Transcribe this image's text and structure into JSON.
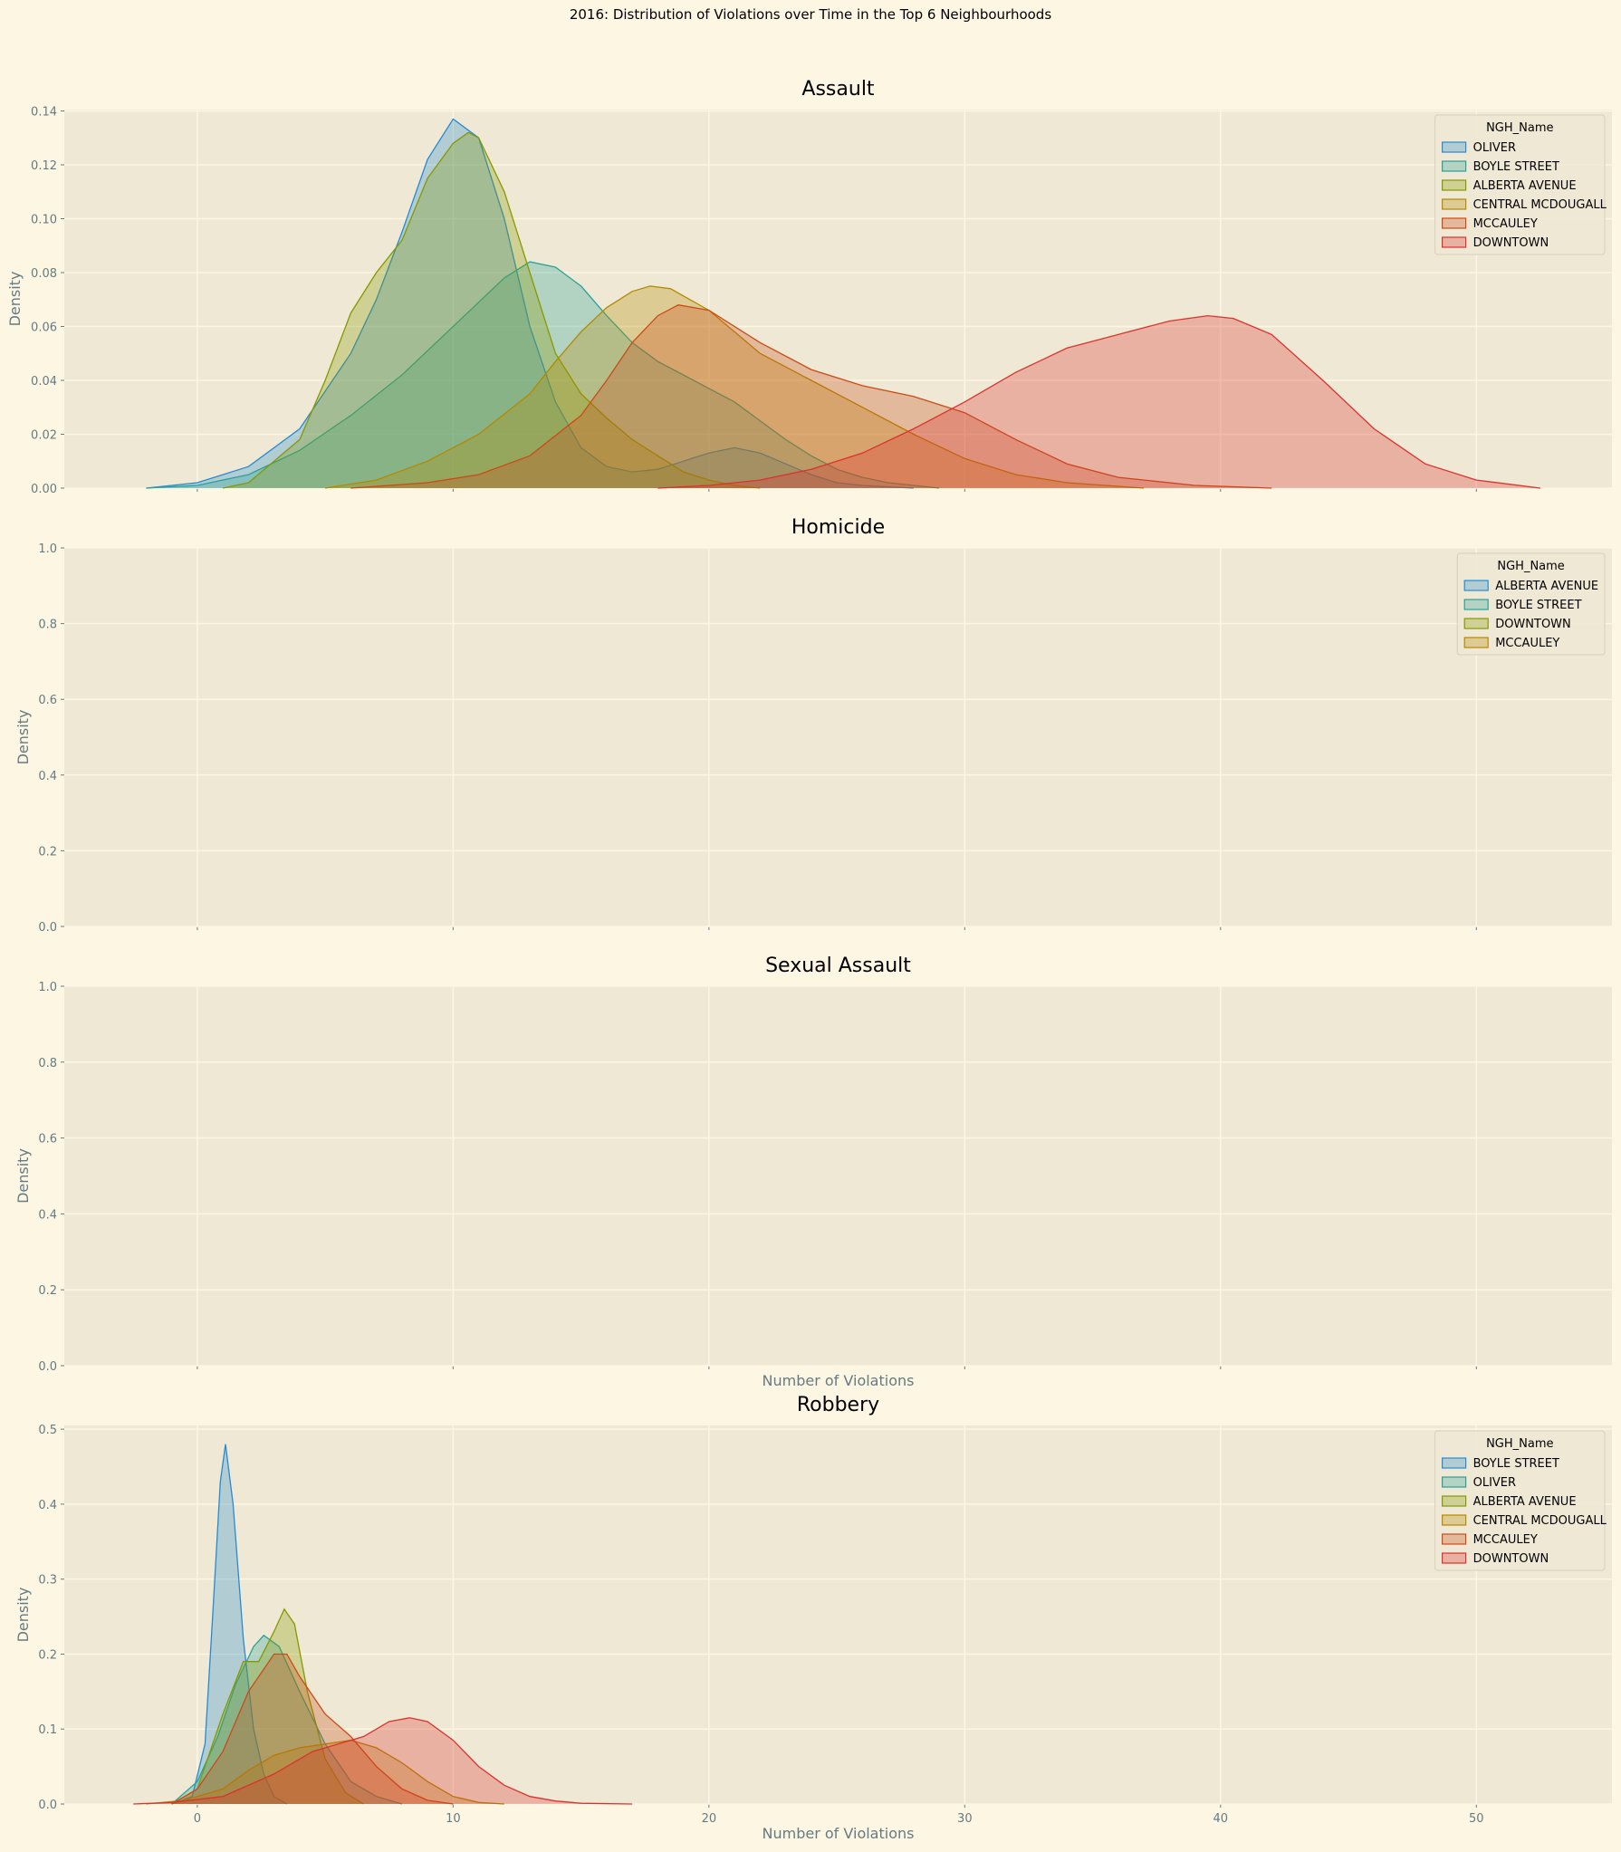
{
  "chart_data": {
    "type": "area",
    "title": "2016: Distribution of Violations over Time in the Top 6 Neighbourhoods",
    "colors": {
      "ALBERTA AVENUE_BOYLE_placeholder": "",
      "palette": [
        "#268bd2",
        "#2aa198",
        "#859900",
        "#b58900",
        "#cb4b16",
        "#dc322f"
      ]
    },
    "style": {
      "figure_bg": "#fdf6e3",
      "axes_bg": "#eee8d5",
      "grid": "#fdf6e3",
      "tick_color": "#657b83"
    },
    "xlim": [
      -5.2,
      55.3
    ],
    "xticks": [
      0,
      10,
      20,
      30,
      40,
      50
    ],
    "legend_title": "NGH_Name",
    "legend_loc": "upper right",
    "panels": [
      {
        "title": "Assault",
        "ylabel": "Density",
        "xlabel": "",
        "ylim": [
          0,
          0.1405
        ],
        "yticks": [
          "0.00",
          "0.02",
          "0.04",
          "0.06",
          "0.08",
          "0.10",
          "0.12",
          "0.14"
        ],
        "series": [
          {
            "name": "OLIVER",
            "color": "#268bd2",
            "points": [
              [
                -2,
                0
              ],
              [
                0,
                0.002
              ],
              [
                2,
                0.008
              ],
              [
                4,
                0.022
              ],
              [
                6,
                0.05
              ],
              [
                7,
                0.07
              ],
              [
                8,
                0.095
              ],
              [
                9,
                0.122
              ],
              [
                10,
                0.137
              ],
              [
                11,
                0.13
              ],
              [
                12,
                0.1
              ],
              [
                13,
                0.06
              ],
              [
                14,
                0.032
              ],
              [
                15,
                0.015
              ],
              [
                16,
                0.008
              ],
              [
                17,
                0.006
              ],
              [
                18,
                0.007
              ],
              [
                19,
                0.01
              ],
              [
                20,
                0.013
              ],
              [
                21,
                0.015
              ],
              [
                22,
                0.013
              ],
              [
                23,
                0.009
              ],
              [
                24,
                0.005
              ],
              [
                25,
                0.002
              ],
              [
                26,
                0.001
              ],
              [
                28,
                0
              ]
            ]
          },
          {
            "name": "BOYLE STREET",
            "color": "#2aa198",
            "points": [
              [
                -2,
                0
              ],
              [
                0,
                0.001
              ],
              [
                2,
                0.005
              ],
              [
                4,
                0.014
              ],
              [
                6,
                0.027
              ],
              [
                8,
                0.042
              ],
              [
                10,
                0.06
              ],
              [
                12,
                0.078
              ],
              [
                13,
                0.084
              ],
              [
                14,
                0.082
              ],
              [
                15,
                0.075
              ],
              [
                16,
                0.064
              ],
              [
                17,
                0.054
              ],
              [
                18,
                0.047
              ],
              [
                19,
                0.042
              ],
              [
                20,
                0.037
              ],
              [
                21,
                0.032
              ],
              [
                22,
                0.025
              ],
              [
                23,
                0.018
              ],
              [
                24,
                0.012
              ],
              [
                25,
                0.007
              ],
              [
                26,
                0.004
              ],
              [
                27,
                0.002
              ],
              [
                29,
                0
              ]
            ]
          },
          {
            "name": "ALBERTA AVENUE",
            "color": "#859900",
            "points": [
              [
                1,
                0
              ],
              [
                2,
                0.002
              ],
              [
                4,
                0.018
              ],
              [
                5,
                0.04
              ],
              [
                6,
                0.065
              ],
              [
                7,
                0.08
              ],
              [
                8,
                0.092
              ],
              [
                9,
                0.115
              ],
              [
                10,
                0.128
              ],
              [
                10.6,
                0.132
              ],
              [
                11,
                0.13
              ],
              [
                12,
                0.11
              ],
              [
                13,
                0.08
              ],
              [
                14,
                0.05
              ],
              [
                15,
                0.035
              ],
              [
                16,
                0.026
              ],
              [
                17,
                0.018
              ],
              [
                18,
                0.012
              ],
              [
                19,
                0.006
              ],
              [
                20,
                0.003
              ],
              [
                21,
                0.001
              ],
              [
                22,
                0
              ]
            ]
          },
          {
            "name": "CENTRAL MCDOUGALL",
            "color": "#b58900",
            "points": [
              [
                5,
                0
              ],
              [
                7,
                0.003
              ],
              [
                9,
                0.01
              ],
              [
                11,
                0.02
              ],
              [
                13,
                0.035
              ],
              [
                14,
                0.047
              ],
              [
                15,
                0.058
              ],
              [
                16,
                0.067
              ],
              [
                17,
                0.073
              ],
              [
                17.7,
                0.075
              ],
              [
                18.5,
                0.074
              ],
              [
                20,
                0.066
              ],
              [
                21,
                0.058
              ],
              [
                22,
                0.05
              ],
              [
                24,
                0.04
              ],
              [
                26,
                0.03
              ],
              [
                28,
                0.02
              ],
              [
                30,
                0.011
              ],
              [
                32,
                0.005
              ],
              [
                34,
                0.002
              ],
              [
                37,
                0
              ]
            ]
          },
          {
            "name": "MCCAULEY",
            "color": "#cb4b16",
            "points": [
              [
                6,
                0
              ],
              [
                9,
                0.002
              ],
              [
                11,
                0.005
              ],
              [
                13,
                0.012
              ],
              [
                15,
                0.027
              ],
              [
                16,
                0.04
              ],
              [
                17,
                0.054
              ],
              [
                18,
                0.064
              ],
              [
                18.8,
                0.068
              ],
              [
                20,
                0.066
              ],
              [
                22,
                0.054
              ],
              [
                24,
                0.044
              ],
              [
                26,
                0.038
              ],
              [
                28,
                0.034
              ],
              [
                30,
                0.028
              ],
              [
                32,
                0.018
              ],
              [
                34,
                0.009
              ],
              [
                36,
                0.004
              ],
              [
                39,
                0.001
              ],
              [
                42,
                0
              ]
            ]
          },
          {
            "name": "DOWNTOWN",
            "color": "#dc322f",
            "points": [
              [
                18,
                0
              ],
              [
                20,
                0.001
              ],
              [
                22,
                0.003
              ],
              [
                24,
                0.007
              ],
              [
                26,
                0.013
              ],
              [
                28,
                0.022
              ],
              [
                30,
                0.032
              ],
              [
                32,
                0.043
              ],
              [
                34,
                0.052
              ],
              [
                36,
                0.057
              ],
              [
                38,
                0.062
              ],
              [
                39.5,
                0.064
              ],
              [
                40.5,
                0.063
              ],
              [
                42,
                0.057
              ],
              [
                44,
                0.04
              ],
              [
                46,
                0.022
              ],
              [
                48,
                0.009
              ],
              [
                50,
                0.003
              ],
              [
                52.5,
                0
              ]
            ]
          }
        ]
      },
      {
        "title": "Homicide",
        "ylabel": "Density",
        "xlabel": "",
        "ylim": [
          0,
          1.0
        ],
        "yticks": [
          "0.0",
          "0.2",
          "0.4",
          "0.6",
          "0.8",
          "1.0"
        ],
        "legend": [
          "ALBERTA AVENUE",
          "BOYLE STREET",
          "DOWNTOWN",
          "MCCAULEY"
        ],
        "series": []
      },
      {
        "title": "Sexual Assault",
        "ylabel": "Density",
        "xlabel": "Number of Violations",
        "ylim": [
          0,
          1.0
        ],
        "yticks": [
          "0.0",
          "0.2",
          "0.4",
          "0.6",
          "0.8",
          "1.0"
        ],
        "series": []
      },
      {
        "title": "Robbery",
        "ylabel": "Density",
        "xlabel": "Number of Violations",
        "ylim": [
          0,
          0.505
        ],
        "yticks": [
          "0.0",
          "0.1",
          "0.2",
          "0.3",
          "0.4",
          "0.5"
        ],
        "series": [
          {
            "name": "BOYLE STREET",
            "color": "#268bd2",
            "points": [
              [
                -1,
                0
              ],
              [
                -0.2,
                0.01
              ],
              [
                0.3,
                0.08
              ],
              [
                0.6,
                0.25
              ],
              [
                0.9,
                0.43
              ],
              [
                1.1,
                0.48
              ],
              [
                1.4,
                0.4
              ],
              [
                1.8,
                0.22
              ],
              [
                2.2,
                0.1
              ],
              [
                2.6,
                0.04
              ],
              [
                3,
                0.01
              ],
              [
                3.5,
                0
              ]
            ]
          },
          {
            "name": "OLIVER",
            "color": "#2aa198",
            "points": [
              [
                -1,
                0
              ],
              [
                0,
                0.03
              ],
              [
                0.8,
                0.09
              ],
              [
                1.5,
                0.16
              ],
              [
                2.2,
                0.21
              ],
              [
                2.6,
                0.225
              ],
              [
                3.2,
                0.21
              ],
              [
                4,
                0.15
              ],
              [
                5,
                0.08
              ],
              [
                6,
                0.03
              ],
              [
                7,
                0.01
              ],
              [
                8,
                0
              ]
            ]
          },
          {
            "name": "ALBERTA AVENUE",
            "color": "#859900",
            "points": [
              [
                -1,
                0
              ],
              [
                0,
                0.02
              ],
              [
                1,
                0.12
              ],
              [
                1.8,
                0.19
              ],
              [
                2.4,
                0.19
              ],
              [
                3,
                0.23
              ],
              [
                3.4,
                0.26
              ],
              [
                3.8,
                0.24
              ],
              [
                4.3,
                0.15
              ],
              [
                5,
                0.06
              ],
              [
                5.8,
                0.015
              ],
              [
                6.5,
                0
              ]
            ]
          },
          {
            "name": "CENTRAL MCDOUGALL",
            "color": "#b58900",
            "points": [
              [
                -2,
                0
              ],
              [
                -0.5,
                0.005
              ],
              [
                1,
                0.02
              ],
              [
                2,
                0.045
              ],
              [
                3,
                0.065
              ],
              [
                4,
                0.075
              ],
              [
                5,
                0.08
              ],
              [
                6,
                0.085
              ],
              [
                7,
                0.075
              ],
              [
                8,
                0.055
              ],
              [
                9,
                0.03
              ],
              [
                10,
                0.01
              ],
              [
                11,
                0.002
              ],
              [
                12,
                0
              ]
            ]
          },
          {
            "name": "MCCAULEY",
            "color": "#cb4b16",
            "points": [
              [
                -1,
                0
              ],
              [
                0,
                0.02
              ],
              [
                1,
                0.07
              ],
              [
                2,
                0.15
              ],
              [
                3,
                0.2
              ],
              [
                3.5,
                0.2
              ],
              [
                4,
                0.17
              ],
              [
                5,
                0.12
              ],
              [
                6,
                0.09
              ],
              [
                7,
                0.05
              ],
              [
                8,
                0.02
              ],
              [
                9,
                0.005
              ],
              [
                10,
                0
              ]
            ]
          },
          {
            "name": "DOWNTOWN",
            "color": "#dc322f",
            "points": [
              [
                -2.5,
                0
              ],
              [
                -1,
                0.002
              ],
              [
                1,
                0.01
              ],
              [
                3,
                0.04
              ],
              [
                4.5,
                0.07
              ],
              [
                5.5,
                0.08
              ],
              [
                6.5,
                0.09
              ],
              [
                7.5,
                0.11
              ],
              [
                8.3,
                0.115
              ],
              [
                9,
                0.11
              ],
              [
                10,
                0.085
              ],
              [
                11,
                0.05
              ],
              [
                12,
                0.025
              ],
              [
                13,
                0.01
              ],
              [
                14,
                0.004
              ],
              [
                15,
                0.001
              ],
              [
                17,
                0
              ]
            ]
          }
        ]
      }
    ]
  }
}
